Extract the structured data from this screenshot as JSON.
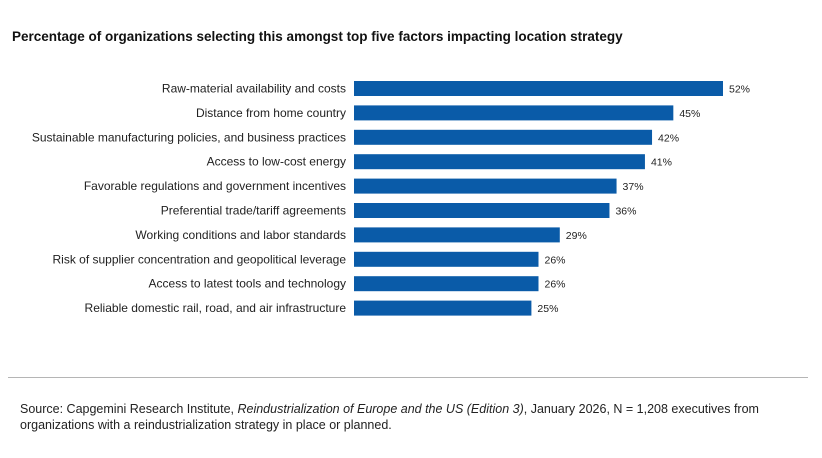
{
  "chart_data": {
    "type": "bar",
    "orientation": "horizontal",
    "title": "Percentage of organizations selecting this amongst top five factors impacting location strategy",
    "categories": [
      "Raw-material availability and costs",
      "Distance from home country",
      "Sustainable manufacturing policies, and business practices",
      "Access to low-cost energy",
      "Favorable regulations and government incentives",
      "Preferential trade/tariff agreements",
      "Working conditions and labor standards",
      "Risk of supplier concentration and geopolitical leverage",
      "Access to latest tools and technology",
      "Reliable domestic rail, road, and air infrastructure"
    ],
    "values": [
      52,
      45,
      42,
      41,
      37,
      36,
      29,
      26,
      26,
      25
    ],
    "value_labels": [
      "52%",
      "45%",
      "42%",
      "41%",
      "37%",
      "36%",
      "29%",
      "26%",
      "26%",
      "25%"
    ],
    "xlim": [
      0,
      52
    ],
    "grid": false,
    "bar_color": "#0A5BA8"
  },
  "source": {
    "prefix": "Source: Capgemini Research Institute, ",
    "report": "Reindustrialization of Europe and the US (Edition 3)",
    "suffix": ", January 2026, N = 1,208 executives from organizations with a reindustrialization strategy in place or planned."
  }
}
